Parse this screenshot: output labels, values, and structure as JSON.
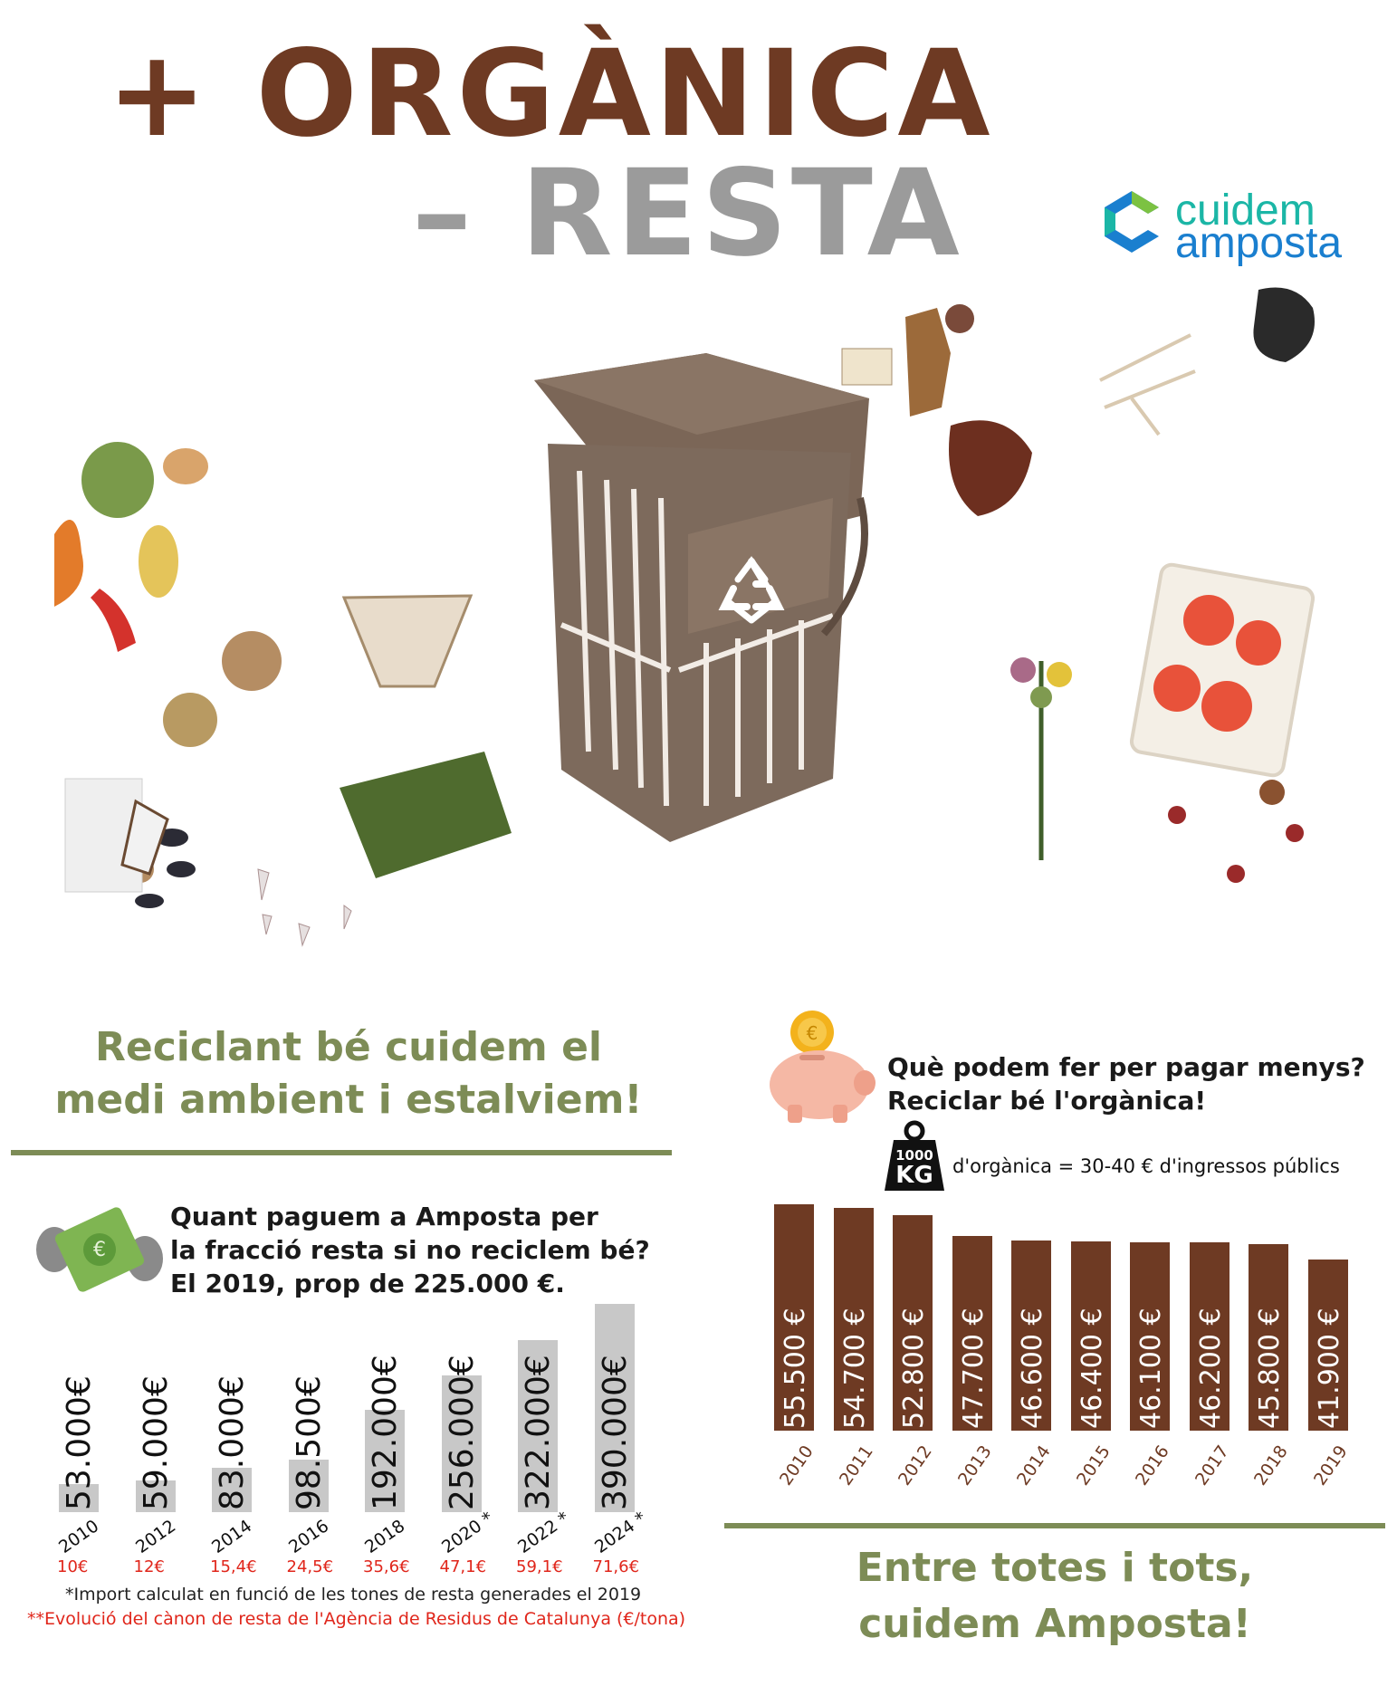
{
  "header": {
    "title_line1": "+ ORGÀNICA",
    "title_line2": "– RESTA"
  },
  "logo": {
    "line1": "cuidem",
    "line2": "amposta",
    "colors": {
      "teal": "#1bb6a6",
      "blue": "#1a7fcf",
      "green": "#7cc242"
    }
  },
  "illustration": {
    "icons": [
      "organic-bin-icon",
      "recycle-icon",
      "food-scraps-icon"
    ]
  },
  "left_section": {
    "heading": "Reciclant bé cuidem el medi ambient i estalviem!",
    "question_line1": "Quant paguem a Amposta per",
    "question_line2": "la fracció resta si no reciclem bé?",
    "question_line3": "El 2019, prop de 225.000 €.",
    "icon": "flying-banknote-icon",
    "note1": "*Import calculat en funció de les tones de resta generades el 2019",
    "note2_prefix": "**",
    "note2": "Evolució del cànon de resta de l'Agència de Residus de Catalunya (€/tona)"
  },
  "right_section": {
    "question_line1": "Què podem fer per pagar menys?",
    "question_line2": "Reciclar bé l'orgànica!",
    "weight_label_top": "1000",
    "weight_label_bottom": "KG",
    "weight_caption": "d'orgànica = 30-40 € d'ingressos públics",
    "icon": "piggy-bank-icon",
    "closing_line1": "Entre totes i tots,",
    "closing_line2": "cuidem Amposta!"
  },
  "colors": {
    "brown": "#6e3a23",
    "grey_bar": "#c8c8c8",
    "olive": "#7d8c56",
    "red": "#e0261b"
  },
  "chart_data": [
    {
      "type": "bar",
      "categories": [
        "2010",
        "2012",
        "2014",
        "2016",
        "2018",
        "2020 *",
        "2022 *",
        "2024 *"
      ],
      "values": [
        53000,
        59000,
        83000,
        98500,
        192000,
        256000,
        322000,
        390000
      ],
      "value_labels": [
        "53.000€",
        "59.000€",
        "83.000€",
        "98.500€",
        "192.000€",
        "256.000€",
        "322.000€",
        "390.000€"
      ],
      "canon_labels": [
        "10€",
        "12€",
        "15,4€",
        "24,5€",
        "35,6€",
        "47,1€",
        "59,1€",
        "71,6€"
      ],
      "ylim": [
        0,
        390000
      ],
      "grid": false
    },
    {
      "type": "bar",
      "categories": [
        "2010",
        "2011",
        "2012",
        "2013",
        "2014",
        "2015",
        "2016",
        "2017",
        "2018",
        "2019"
      ],
      "values": [
        55500,
        54700,
        52800,
        47700,
        46600,
        46400,
        46100,
        46200,
        45800,
        41900
      ],
      "value_labels": [
        "55.500 €",
        "54.700 €",
        "52.800 €",
        "47.700 €",
        "46.600 €",
        "46.400 €",
        "46.100 €",
        "46.200 €",
        "45.800 €",
        "41.900 €"
      ],
      "ylim": [
        0,
        55500
      ],
      "grid": false
    }
  ]
}
